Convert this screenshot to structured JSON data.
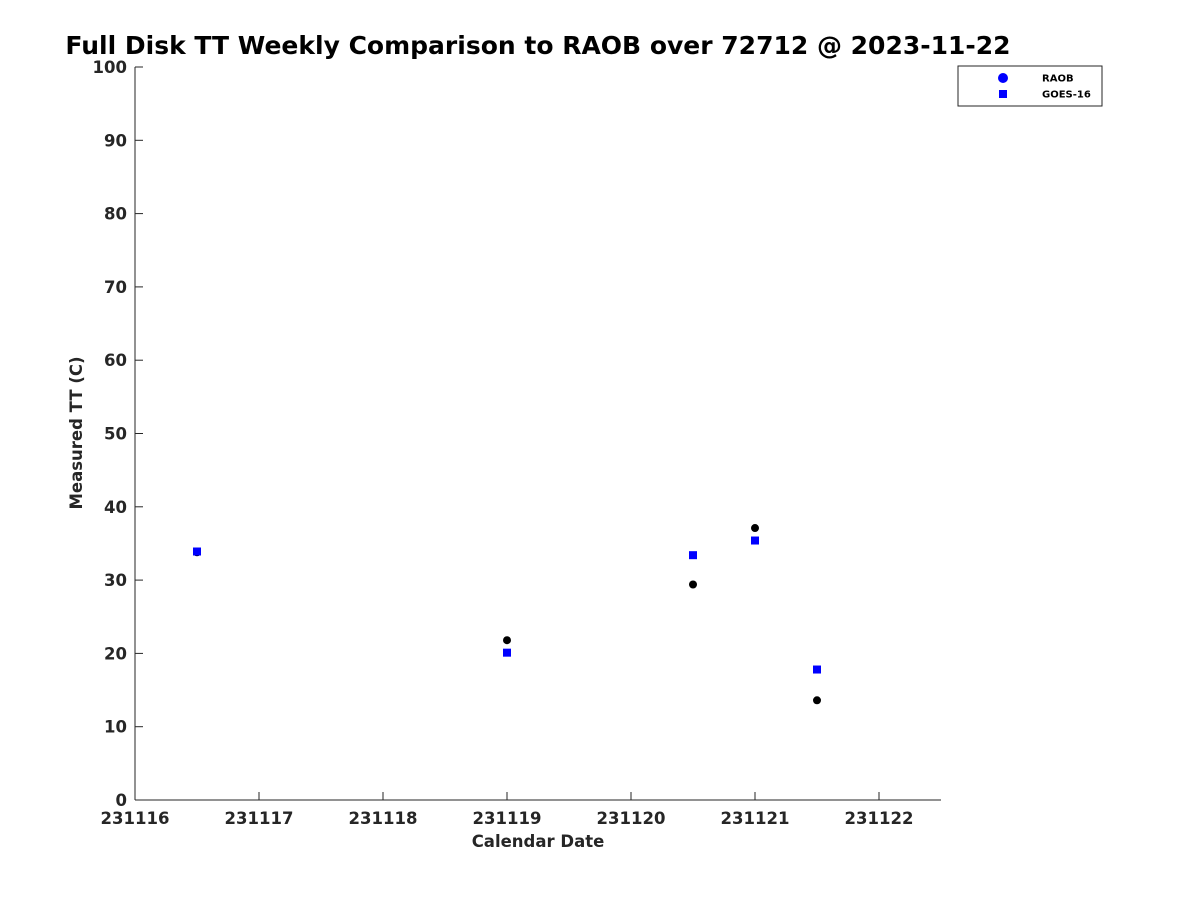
{
  "chart_data": {
    "type": "scatter",
    "title": "Full Disk TT Weekly Comparison to RAOB over 72712 @ 2023-11-22",
    "xlabel": "Calendar Date",
    "ylabel": "Measured TT (C)",
    "xlim": [
      "2023-11-16T00:00",
      "2023-11-22T12:00"
    ],
    "ylim": [
      0,
      100
    ],
    "x_ticks": [
      {
        "x": "2023-11-16T00:00",
        "label": "231116"
      },
      {
        "x": "2023-11-17T00:00",
        "label": "231117"
      },
      {
        "x": "2023-11-18T00:00",
        "label": "231118"
      },
      {
        "x": "2023-11-19T00:00",
        "label": "231119"
      },
      {
        "x": "2023-11-20T00:00",
        "label": "231120"
      },
      {
        "x": "2023-11-21T00:00",
        "label": "231121"
      },
      {
        "x": "2023-11-22T00:00",
        "label": "231122"
      }
    ],
    "y_ticks": [
      0,
      10,
      20,
      30,
      40,
      50,
      60,
      70,
      80,
      90,
      100
    ],
    "grid": false,
    "legend_position": "top-right",
    "series": [
      {
        "name": "RAOB",
        "marker": "circle",
        "marker_color": "#000000",
        "legend_color": "#0000ff",
        "points": [
          {
            "x": "2023-11-16T12:00",
            "y": 33.8
          },
          {
            "x": "2023-11-19T00:00",
            "y": 21.8
          },
          {
            "x": "2023-11-20T12:00",
            "y": 29.4
          },
          {
            "x": "2023-11-21T00:00",
            "y": 37.1
          },
          {
            "x": "2023-11-21T12:00",
            "y": 13.6
          }
        ]
      },
      {
        "name": "GOES-16",
        "marker": "square",
        "marker_color": "#0000ff",
        "legend_color": "#0000ff",
        "points": [
          {
            "x": "2023-11-16T12:00",
            "y": 33.9
          },
          {
            "x": "2023-11-19T00:00",
            "y": 20.1
          },
          {
            "x": "2023-11-20T12:00",
            "y": 33.4
          },
          {
            "x": "2023-11-21T00:00",
            "y": 35.4
          },
          {
            "x": "2023-11-21T12:00",
            "y": 17.8
          }
        ]
      }
    ]
  }
}
